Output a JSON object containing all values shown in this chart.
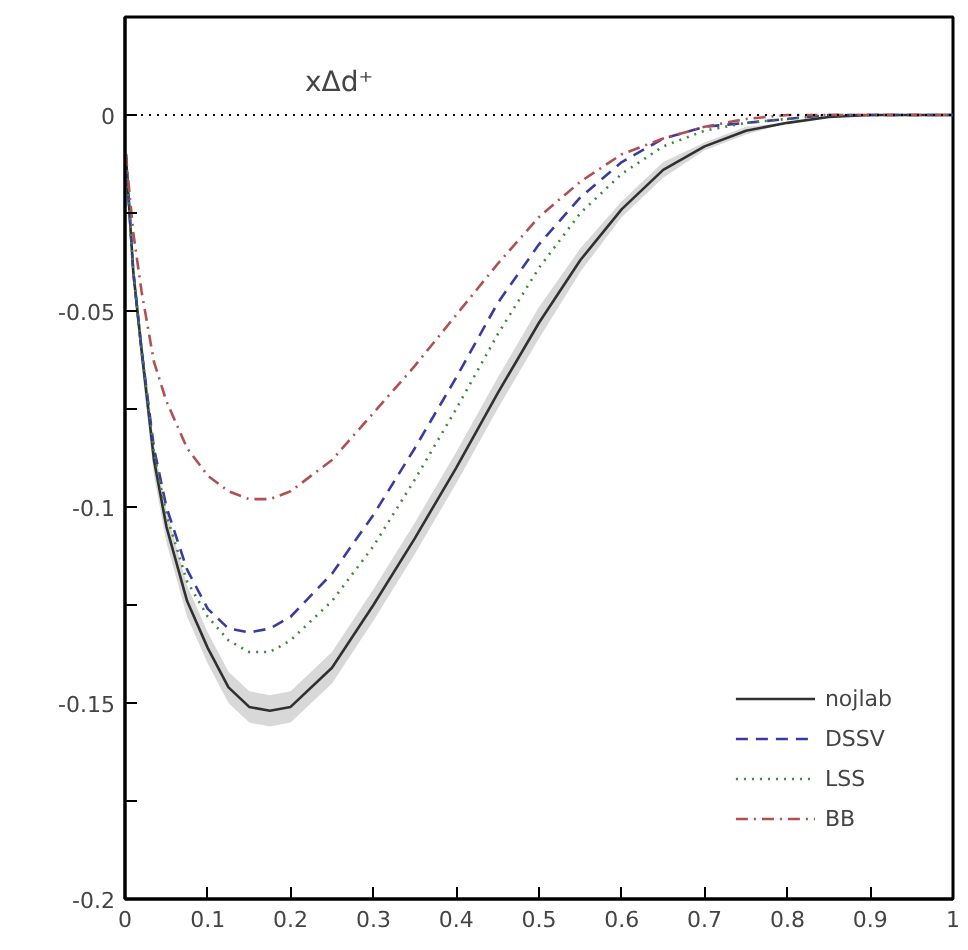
{
  "chart_data": {
    "type": "line",
    "annotations": [
      "xΔd⁺"
    ],
    "x": [
      0.001,
      0.01,
      0.02,
      0.035,
      0.05,
      0.075,
      0.1,
      0.125,
      0.15,
      0.175,
      0.2,
      0.25,
      0.3,
      0.35,
      0.4,
      0.45,
      0.5,
      0.55,
      0.6,
      0.65,
      0.7,
      0.75,
      0.8,
      0.85,
      0.9,
      1.0
    ],
    "series": [
      {
        "name": "nojlab",
        "color": "#303030",
        "line_style": "solid",
        "values": [
          -0.01,
          -0.04,
          -0.06,
          -0.088,
          -0.105,
          -0.124,
          -0.136,
          -0.146,
          -0.151,
          -0.152,
          -0.151,
          -0.141,
          -0.125,
          -0.108,
          -0.09,
          -0.071,
          -0.053,
          -0.037,
          -0.024,
          -0.014,
          -0.008,
          -0.004,
          -0.002,
          -0.0005,
          0,
          0
        ],
        "lower": [
          -0.011,
          -0.043,
          -0.064,
          -0.092,
          -0.109,
          -0.128,
          -0.14,
          -0.15,
          -0.155,
          -0.156,
          -0.155,
          -0.145,
          -0.129,
          -0.112,
          -0.094,
          -0.075,
          -0.057,
          -0.04,
          -0.026,
          -0.016,
          -0.009,
          -0.005,
          -0.002,
          -0.0005,
          0,
          0
        ],
        "upper": [
          -0.009,
          -0.037,
          -0.056,
          -0.084,
          -0.101,
          -0.12,
          -0.132,
          -0.142,
          -0.147,
          -0.148,
          -0.147,
          -0.137,
          -0.121,
          -0.104,
          -0.086,
          -0.067,
          -0.049,
          -0.034,
          -0.022,
          -0.012,
          -0.007,
          -0.003,
          -0.002,
          -0.0005,
          0,
          0
        ]
      },
      {
        "name": "DSSV",
        "color": "#3a3aa0",
        "line_style": "dashed",
        "values": [
          -0.01,
          -0.04,
          -0.06,
          -0.085,
          -0.1,
          -0.116,
          -0.126,
          -0.131,
          -0.132,
          -0.131,
          -0.128,
          -0.117,
          -0.102,
          -0.085,
          -0.067,
          -0.048,
          -0.033,
          -0.021,
          -0.012,
          -0.006,
          -0.003,
          -0.002,
          -0.001,
          0,
          0,
          0
        ]
      },
      {
        "name": "LSS",
        "color": "#3a8a3a",
        "line_style": "dotted",
        "values": [
          -0.01,
          -0.04,
          -0.06,
          -0.086,
          -0.102,
          -0.119,
          -0.128,
          -0.134,
          -0.137,
          -0.137,
          -0.134,
          -0.124,
          -0.11,
          -0.093,
          -0.075,
          -0.056,
          -0.039,
          -0.025,
          -0.015,
          -0.008,
          -0.004,
          -0.002,
          -0.001,
          0,
          0,
          0
        ]
      },
      {
        "name": "BB",
        "color": "#b05050",
        "line_style": "dashdot",
        "values": [
          -0.01,
          -0.03,
          -0.045,
          -0.063,
          -0.073,
          -0.085,
          -0.092,
          -0.096,
          -0.098,
          -0.098,
          -0.096,
          -0.088,
          -0.076,
          -0.064,
          -0.051,
          -0.038,
          -0.026,
          -0.017,
          -0.01,
          -0.006,
          -0.003,
          -0.001,
          0,
          0,
          0,
          0
        ]
      }
    ],
    "ref_lines": [
      {
        "axis": "y",
        "value": 0,
        "color": "#000000",
        "line_style": "dotted"
      }
    ],
    "xlim": [
      0,
      1
    ],
    "xticks": [
      0,
      0.1,
      0.2,
      0.3,
      0.4,
      0.5,
      0.6,
      0.7,
      0.8,
      0.9,
      1
    ],
    "ylim": [
      -0.2,
      0.025
    ],
    "yticks": [
      -0.2,
      {
        "value": -0.175,
        "label": null
      },
      -0.15,
      {
        "value": -0.125,
        "label": null
      },
      -0.1,
      {
        "value": -0.075,
        "label": null
      },
      -0.05,
      {
        "value": -0.025,
        "label": null
      },
      0
    ],
    "grid": false,
    "legend": "bottom right"
  }
}
